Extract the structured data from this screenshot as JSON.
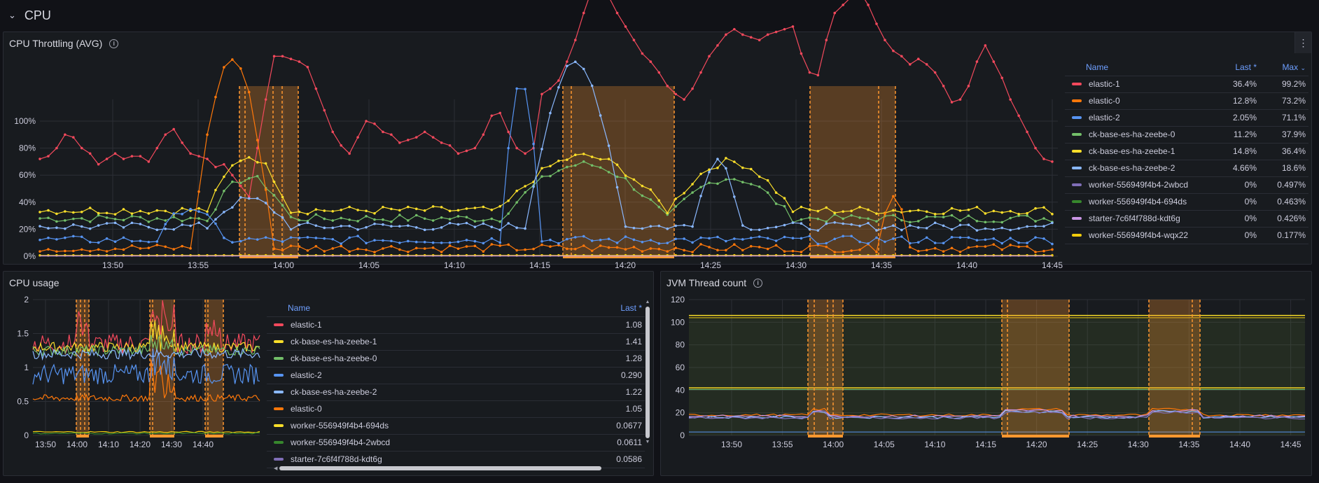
{
  "row": {
    "title": "CPU"
  },
  "colors": {
    "red": "#f2495c",
    "orange": "#ff780a",
    "blue": "#5794f2",
    "green": "#73bf69",
    "yellow": "#fade2a",
    "lightblue": "#8ab8ff",
    "purple": "#806eb7",
    "darkgreen": "#37872d",
    "pink": "#ca95e5",
    "gold": "#f2cc0c",
    "grey": "#9fa1ad",
    "annotation": "#ff9830"
  },
  "throttling": {
    "title": "CPU Throttling (AVG)",
    "legend_headers": {
      "name": "Name",
      "last": "Last *",
      "max": "Max"
    },
    "legend": [
      {
        "name": "elastic-1",
        "last": "36.4%",
        "max": "99.2%",
        "color": "#f2495c"
      },
      {
        "name": "elastic-0",
        "last": "12.8%",
        "max": "73.2%",
        "color": "#ff780a"
      },
      {
        "name": "elastic-2",
        "last": "2.05%",
        "max": "71.1%",
        "color": "#5794f2"
      },
      {
        "name": "ck-base-es-ha-zeebe-0",
        "last": "11.2%",
        "max": "37.9%",
        "color": "#73bf69"
      },
      {
        "name": "ck-base-es-ha-zeebe-1",
        "last": "14.8%",
        "max": "36.4%",
        "color": "#fade2a"
      },
      {
        "name": "ck-base-es-ha-zeebe-2",
        "last": "4.66%",
        "max": "18.6%",
        "color": "#8ab8ff"
      },
      {
        "name": "worker-556949f4b4-2wbcd",
        "last": "0%",
        "max": "0.497%",
        "color": "#806eb7"
      },
      {
        "name": "worker-556949f4b4-694ds",
        "last": "0%",
        "max": "0.463%",
        "color": "#37872d"
      },
      {
        "name": "starter-7c6f4f788d-kdt6g",
        "last": "0%",
        "max": "0.426%",
        "color": "#ca95e5"
      },
      {
        "name": "worker-556949f4b4-wqx22",
        "last": "0%",
        "max": "0.177%",
        "color": "#f2cc0c"
      }
    ],
    "y_ticks": [
      "0%",
      "20%",
      "40%",
      "60%",
      "80%",
      "100%"
    ],
    "x_ticks": [
      "13:50",
      "13:55",
      "14:00",
      "14:05",
      "14:10",
      "14:15",
      "14:20",
      "14:25",
      "14:30",
      "14:35",
      "14:40",
      "14:45"
    ]
  },
  "cpu_usage": {
    "title": "CPU usage",
    "legend_headers": {
      "name": "Name",
      "last": "Last *"
    },
    "legend": [
      {
        "name": "elastic-1",
        "last": "1.08",
        "color": "#f2495c"
      },
      {
        "name": "ck-base-es-ha-zeebe-1",
        "last": "1.41",
        "color": "#fade2a"
      },
      {
        "name": "ck-base-es-ha-zeebe-0",
        "last": "1.28",
        "color": "#73bf69"
      },
      {
        "name": "elastic-2",
        "last": "0.290",
        "color": "#5794f2"
      },
      {
        "name": "ck-base-es-ha-zeebe-2",
        "last": "1.22",
        "color": "#8ab8ff"
      },
      {
        "name": "elastic-0",
        "last": "1.05",
        "color": "#ff780a"
      },
      {
        "name": "worker-556949f4b4-694ds",
        "last": "0.0677",
        "color": "#fade2a"
      },
      {
        "name": "worker-556949f4b4-2wbcd",
        "last": "0.0611",
        "color": "#37872d"
      },
      {
        "name": "starter-7c6f4f788d-kdt6g",
        "last": "0.0586",
        "color": "#806eb7"
      }
    ],
    "y_ticks": [
      "0",
      "0.5",
      "1",
      "1.5",
      "2"
    ],
    "x_ticks": [
      "13:50",
      "14:00",
      "14:10",
      "14:20",
      "14:30",
      "14:40"
    ]
  },
  "jvm": {
    "title": "JVM Thread count",
    "y_ticks": [
      "0",
      "20",
      "40",
      "60",
      "80",
      "100",
      "120"
    ],
    "x_ticks": [
      "13:50",
      "13:55",
      "14:00",
      "14:05",
      "14:10",
      "14:15",
      "14:20",
      "14:25",
      "14:30",
      "14:35",
      "14:40",
      "14:45"
    ]
  }
}
